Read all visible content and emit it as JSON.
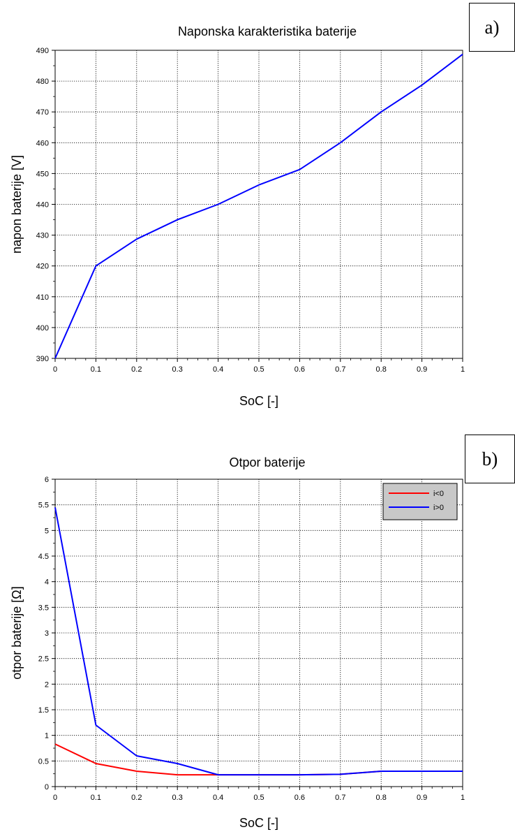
{
  "panels": {
    "a": {
      "label": "a)"
    },
    "b": {
      "label": "b)"
    }
  },
  "chart_data": [
    {
      "type": "line",
      "title": "Naponska karakteristika baterije",
      "xlabel": "SoC [-]",
      "ylabel": "napon baterije [V]",
      "xlim": [
        0,
        1
      ],
      "ylim": [
        390,
        490
      ],
      "grid": true,
      "legend": "none",
      "x": [
        0,
        0.1,
        0.2,
        0.3,
        0.4,
        0.5,
        0.6,
        0.7,
        0.8,
        0.9,
        1.0
      ],
      "xticks": [
        0,
        0.1,
        0.2,
        0.3,
        0.4,
        0.5,
        0.6,
        0.7,
        0.8,
        0.9,
        1
      ],
      "xtick_labels": [
        "0",
        "0.1",
        "0.2",
        "0.3",
        "0.4",
        "0.5",
        "0.6",
        "0.7",
        "0.8",
        "0.9",
        "1"
      ],
      "yticks": [
        390,
        400,
        410,
        420,
        430,
        440,
        450,
        460,
        470,
        480,
        490
      ],
      "ytick_labels": [
        "390",
        "400",
        "410",
        "420",
        "430",
        "440",
        "450",
        "460",
        "470",
        "480",
        "490"
      ],
      "series": [
        {
          "values": [
            390,
            420,
            428.7,
            435,
            440,
            446.3,
            451.3,
            460,
            470,
            478.7,
            488.7
          ],
          "color": "#0000ff"
        }
      ]
    },
    {
      "type": "line",
      "title": "Otpor baterije",
      "xlabel": "SoC [-]",
      "ylabel": "otpor baterije [Ω]",
      "xlim": [
        0,
        1
      ],
      "ylim": [
        0,
        6
      ],
      "grid": true,
      "legend": "top-right",
      "x": [
        0,
        0.1,
        0.2,
        0.3,
        0.4,
        0.5,
        0.6,
        0.7,
        0.8,
        0.9,
        1.0
      ],
      "xticks": [
        0,
        0.1,
        0.2,
        0.3,
        0.4,
        0.5,
        0.6,
        0.7,
        0.8,
        0.9,
        1
      ],
      "xtick_labels": [
        "0",
        "0.1",
        "0.2",
        "0.3",
        "0.4",
        "0.5",
        "0.6",
        "0.7",
        "0.8",
        "0.9",
        "1"
      ],
      "yticks": [
        0,
        0.5,
        1,
        1.5,
        2,
        2.5,
        3,
        3.5,
        4,
        4.5,
        5,
        5.5,
        6
      ],
      "ytick_labels": [
        "0",
        "0.5",
        "1",
        "1.5",
        "2",
        "2.5",
        "3",
        "3.5",
        "4",
        "4.5",
        "5",
        "5.5",
        "6"
      ],
      "series": [
        {
          "name": "i<0",
          "values": [
            0.83,
            0.45,
            0.3,
            0.23,
            0.23,
            0.23,
            0.23,
            0.24,
            0.3,
            0.3,
            0.3
          ],
          "color": "#ff0000"
        },
        {
          "name": "i>0",
          "values": [
            5.45,
            1.2,
            0.6,
            0.45,
            0.23,
            0.23,
            0.23,
            0.24,
            0.3,
            0.3,
            0.3
          ],
          "color": "#0000ff"
        }
      ],
      "legend_background": "#c8c8c8"
    }
  ]
}
